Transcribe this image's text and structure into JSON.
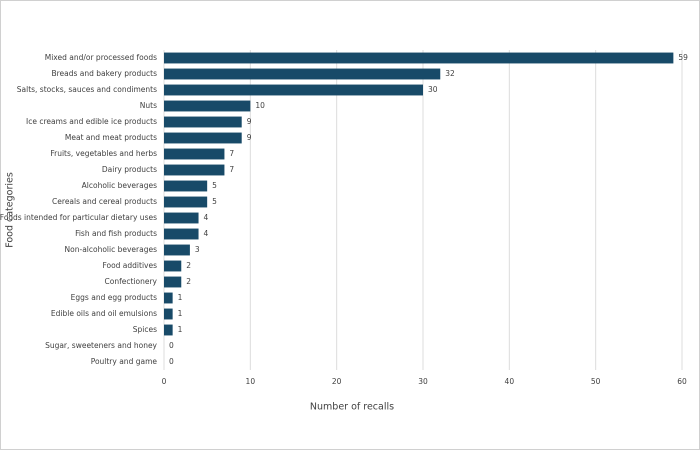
{
  "chart_data": {
    "type": "bar",
    "orientation": "horizontal",
    "x_label": "Number of recalls",
    "y_label": "Food categories",
    "categories": [
      "Mixed and/or processed foods",
      "Breads and bakery products",
      "Salts, stocks, sauces and condiments",
      "Nuts",
      "Ice creams and edible ice products",
      "Meat and meat products",
      "Fruits, vegetables and herbs",
      "Dairy products",
      "Alcoholic beverages",
      "Cereals and cereal products",
      "Foods intended for particular dietary uses",
      "Fish and fish products",
      "Non-alcoholic beverages",
      "Food additives",
      "Confectionery",
      "Eggs and egg products",
      "Edible oils and oil emulsions",
      "Spices",
      "Sugar, sweeteners and honey",
      "Poultry and game"
    ],
    "values": [
      59,
      32,
      30,
      10,
      9,
      9,
      7,
      7,
      5,
      5,
      4,
      4,
      3,
      2,
      2,
      1,
      1,
      1,
      0,
      0
    ],
    "color": "#184a68",
    "xlim": [
      0,
      60
    ],
    "xticks": [
      0,
      10,
      20,
      30,
      40,
      50,
      60
    ],
    "grid": true
  }
}
